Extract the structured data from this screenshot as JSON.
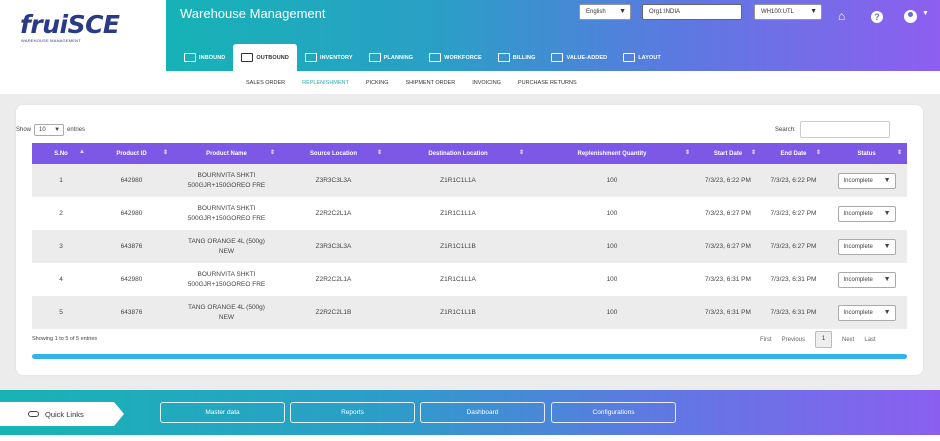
{
  "brand": {
    "logo": "fruiSCE",
    "tagline": "WAREHOUSE MANAGEMENT"
  },
  "header": {
    "title": "Warehouse Management",
    "language": "English",
    "org": "Org1:INDIA",
    "warehouse": "WH100:UTL",
    "icons": [
      "home-icon",
      "help-icon",
      "user-icon"
    ]
  },
  "tabs": [
    {
      "label": "INBOUND",
      "icon": "inbound-icon"
    },
    {
      "label": "OUTBOUND",
      "icon": "outbound-icon"
    },
    {
      "label": "INVENTORY",
      "icon": "inventory-icon"
    },
    {
      "label": "PLANNING",
      "icon": "planning-icon"
    },
    {
      "label": "WORKFORCE",
      "icon": "workforce-icon"
    },
    {
      "label": "BILLING",
      "icon": "billing-icon"
    },
    {
      "label": "VALUE-ADDED",
      "icon": "value-added-icon"
    },
    {
      "label": "LAYOUT",
      "icon": "layout-icon"
    }
  ],
  "subnav": [
    "SALES ORDER",
    "REPLENISHMENT",
    "PICKING",
    "SHIPMENT ORDER",
    "INVOICING",
    "PURCHASE RETURNS"
  ],
  "table": {
    "show_label": "Show",
    "entries_value": "10",
    "entries_label": "entries",
    "search_label": "Search:",
    "search_value": "",
    "columns": [
      "S.No",
      "Product ID",
      "Product Name",
      "Source Location",
      "Destination Location",
      "Replenishment Quantity",
      "Start Date",
      "End Date",
      "Status"
    ],
    "rows": [
      {
        "sno": "1",
        "product_id": "642980",
        "name1": "BOURNVITA SHKTI",
        "name2": "500GJR+150GOREO FRE",
        "source": "Z3R3C3L3A",
        "dest": "Z1R1C1L1A",
        "qty": "100",
        "start": "7/3/23, 6:22 PM",
        "end": "7/3/23, 6:22 PM",
        "status": "Incomplete"
      },
      {
        "sno": "2",
        "product_id": "642980",
        "name1": "BOURNVITA SHKTI",
        "name2": "500GJR+150GOREO FRE",
        "source": "Z2R2C2L1A",
        "dest": "Z1R1C1L1A",
        "qty": "100",
        "start": "7/3/23, 6:27 PM",
        "end": "7/3/23, 6:27 PM",
        "status": "Incomplete"
      },
      {
        "sno": "3",
        "product_id": "643876",
        "name1": "TANG ORANGE 4L (500g)",
        "name2": "NEW",
        "source": "Z3R3C3L3A",
        "dest": "Z1R1C1L1B",
        "qty": "100",
        "start": "7/3/23, 6:27 PM",
        "end": "7/3/23, 6:27 PM",
        "status": "Incomplete"
      },
      {
        "sno": "4",
        "product_id": "642980",
        "name1": "BOURNVITA SHKTI",
        "name2": "500GJR+150GOREO FRE",
        "source": "Z2R2C2L1A",
        "dest": "Z1R1C1L1A",
        "qty": "100",
        "start": "7/3/23, 6:31 PM",
        "end": "7/3/23, 6:31 PM",
        "status": "Incomplete"
      },
      {
        "sno": "5",
        "product_id": "643876",
        "name1": "TANG ORANGE 4L (500g)",
        "name2": "NEW",
        "source": "Z2R2C2L1B",
        "dest": "Z1R1C1L1B",
        "qty": "100",
        "start": "7/3/23, 6:31 PM",
        "end": "7/3/23, 6:31 PM",
        "status": "Incomplete"
      }
    ],
    "showing": "Showing 1 to 5 of 5 entries",
    "pagination": {
      "first": "First",
      "previous": "Previous",
      "page": "1",
      "next": "Next",
      "last": "Last"
    }
  },
  "footer": {
    "quick_links": "Quick Links",
    "buttons": [
      "Master data",
      "Reports",
      "Dashboard",
      "Configurations"
    ]
  },
  "colors": {
    "header_accent": "#7d57e6",
    "scrollbar": "#32b3ec",
    "brand": "#2a3a86"
  }
}
